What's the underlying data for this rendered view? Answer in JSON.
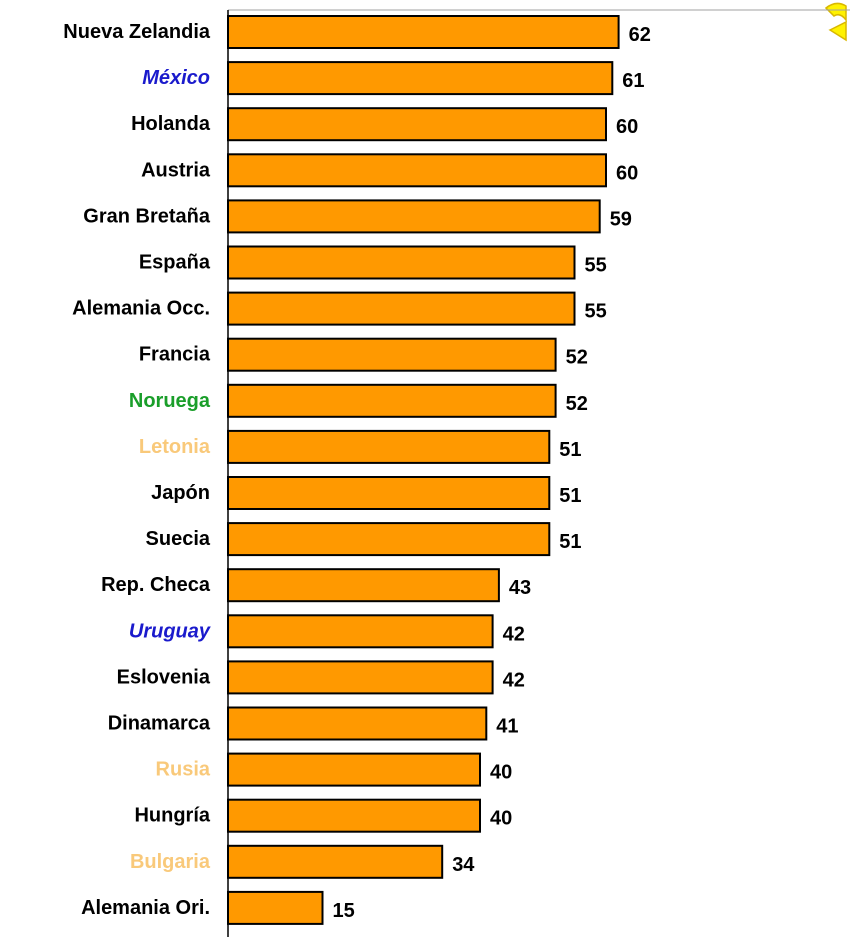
{
  "chart_data": {
    "type": "bar",
    "orientation": "horizontal",
    "title": "",
    "xlabel": "",
    "ylabel": "",
    "xlim": [
      0,
      100
    ],
    "grid": false,
    "bar_color": "#FF9900",
    "categories": [
      "Nueva Zelandia",
      "México",
      "Holanda",
      "Austria",
      "Gran Bretaña",
      "España",
      "Alemania Occ.",
      "Francia",
      "Noruega",
      "Letonia",
      "Japón",
      "Suecia",
      "Rep. Checa",
      "Uruguay",
      "Eslovenia",
      "Dinamarca",
      "Rusia",
      "Hungría",
      "Bulgaria",
      "Alemania Ori."
    ],
    "values": [
      62,
      61,
      60,
      60,
      59,
      55,
      55,
      52,
      52,
      51,
      51,
      51,
      43,
      42,
      42,
      41,
      40,
      40,
      34,
      15
    ],
    "data_labels": [
      "62",
      "61",
      "60",
      "60",
      "59",
      "55",
      "55",
      "52",
      "52",
      "51",
      "51",
      "51",
      "43",
      "42",
      "42",
      "41",
      "40",
      "40",
      "34",
      "15"
    ],
    "label_colors": [
      "#000000",
      "#1A1ACC",
      "#000000",
      "#000000",
      "#000000",
      "#000000",
      "#000000",
      "#000000",
      "#1A9E2A",
      "#F9C97A",
      "#000000",
      "#000000",
      "#000000",
      "#1A1ACC",
      "#000000",
      "#000000",
      "#F9C97A",
      "#000000",
      "#F9C97A",
      "#000000"
    ],
    "label_italic": [
      false,
      true,
      false,
      false,
      false,
      false,
      false,
      false,
      false,
      false,
      false,
      false,
      false,
      true,
      false,
      false,
      false,
      false,
      false,
      false
    ]
  }
}
